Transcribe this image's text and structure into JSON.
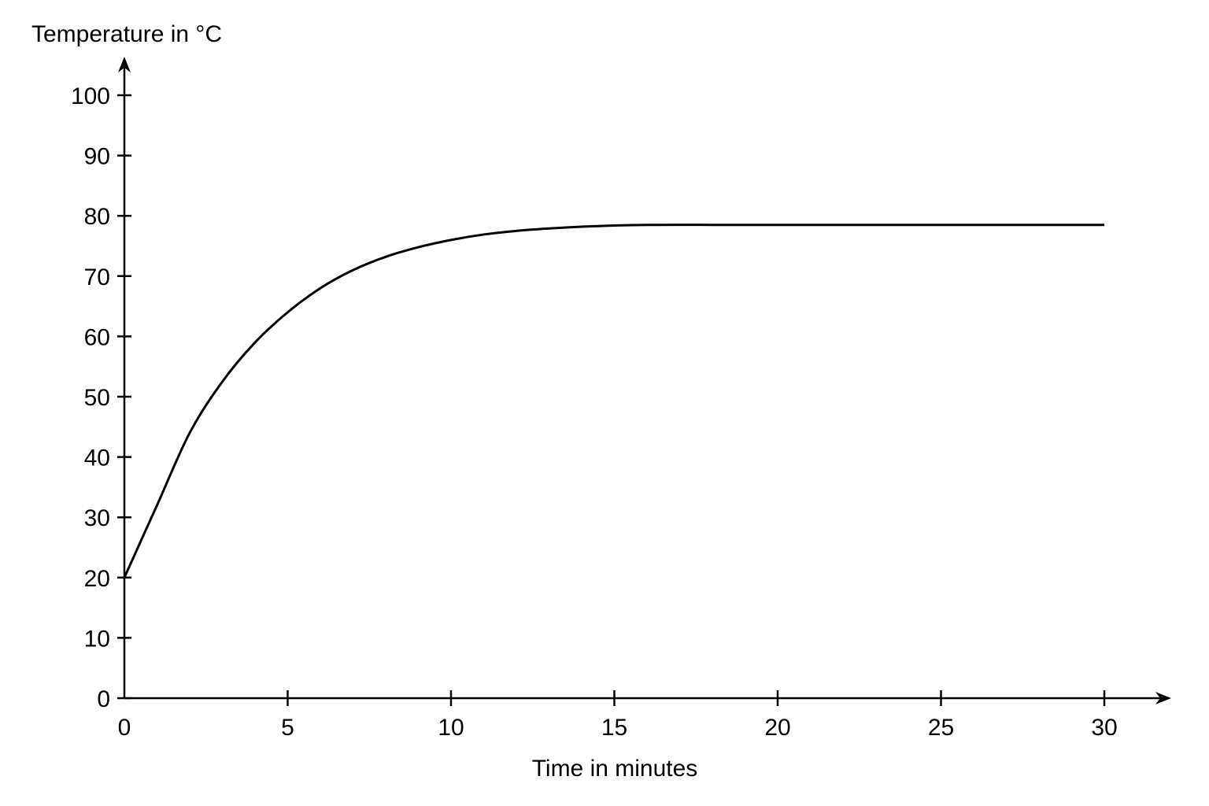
{
  "chart_data": {
    "type": "line",
    "title": "",
    "xlabel": "Time in minutes",
    "ylabel": "Temperature in °C",
    "xlim": [
      0,
      30
    ],
    "ylim": [
      0,
      100
    ],
    "x_ticks": [
      0,
      5,
      10,
      15,
      20,
      25,
      30
    ],
    "y_ticks": [
      0,
      10,
      20,
      30,
      40,
      50,
      60,
      70,
      80,
      90,
      100
    ],
    "grid": false,
    "legend": "none",
    "series": [
      {
        "x": [
          0,
          1,
          2,
          3,
          4,
          5,
          6,
          7,
          8,
          9,
          10,
          11,
          12,
          13,
          14,
          15,
          16,
          18,
          20,
          22,
          24,
          26,
          28,
          30
        ],
        "y": [
          20,
          32,
          44,
          52.5,
          59,
          64,
          68,
          71,
          73.2,
          74.8,
          76,
          76.9,
          77.5,
          77.9,
          78.2,
          78.4,
          78.5,
          78.5,
          78.5,
          78.5,
          78.5,
          78.5,
          78.5,
          78.5
        ]
      }
    ],
    "colors": {
      "line": "#000000",
      "axes": "#000000",
      "background": "#ffffff"
    }
  }
}
